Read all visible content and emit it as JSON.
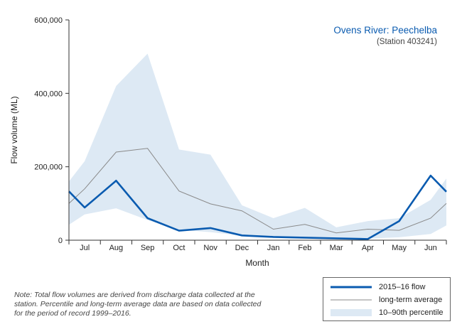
{
  "chart_data": {
    "type": "line",
    "title": "Ovens River: Peechelba",
    "subtitle": "(Station 403241)",
    "xlabel": "Month",
    "ylabel": "Flow volume (ML)",
    "ylim": [
      0,
      600000
    ],
    "yticks": [
      0,
      200000,
      400000,
      600000
    ],
    "ytick_labels": [
      "0",
      "200,000",
      "400,000",
      "600,000"
    ],
    "categories": [
      "Jul",
      "Aug",
      "Sep",
      "Oct",
      "Nov",
      "Dec",
      "Jan",
      "Feb",
      "Mar",
      "Apr",
      "May",
      "Jun"
    ],
    "grid": false,
    "legend_position": "bottom-right",
    "series": [
      {
        "name": "2015–16 flow",
        "color": "#0a5bb0",
        "x": [
          0,
          0.5,
          1.5,
          2.5,
          3.5,
          4.5,
          5.5,
          6.5,
          7.5,
          8.5,
          9.5,
          10.5,
          11.5,
          12
        ],
        "values": [
          133000,
          89000,
          162000,
          60000,
          26000,
          33000,
          13000,
          9000,
          7000,
          5000,
          3000,
          52000,
          176000,
          132000
        ]
      },
      {
        "name": "long-term average",
        "color": "#8a8a8a",
        "x": [
          0,
          0.5,
          1.5,
          2.5,
          3.5,
          4.5,
          5.5,
          6.5,
          7.5,
          8.5,
          9.5,
          10.5,
          11.5,
          12
        ],
        "values": [
          100000,
          140000,
          240000,
          250000,
          134000,
          99000,
          80000,
          30000,
          43000,
          20000,
          30000,
          27000,
          60000,
          100000
        ]
      }
    ],
    "band": {
      "name": "10–90th percentile",
      "color": "#dde9f4",
      "x": [
        0,
        0.5,
        1.5,
        2.5,
        3.5,
        4.5,
        5.5,
        6.5,
        7.5,
        8.5,
        9.5,
        10.5,
        11.5,
        12
      ],
      "upper": [
        160000,
        215000,
        420000,
        508000,
        247000,
        233000,
        95000,
        60000,
        88000,
        35000,
        52000,
        60000,
        110000,
        168000
      ],
      "lower": [
        42000,
        70000,
        87000,
        55000,
        28000,
        22000,
        12000,
        8000,
        7000,
        4000,
        4000,
        8000,
        17000,
        40000
      ]
    }
  },
  "note": "Note: Total flow volumes are derived from discharge data collected at the station. Percentile and long-term average data are based on data collected for the period of record 1999–2016."
}
